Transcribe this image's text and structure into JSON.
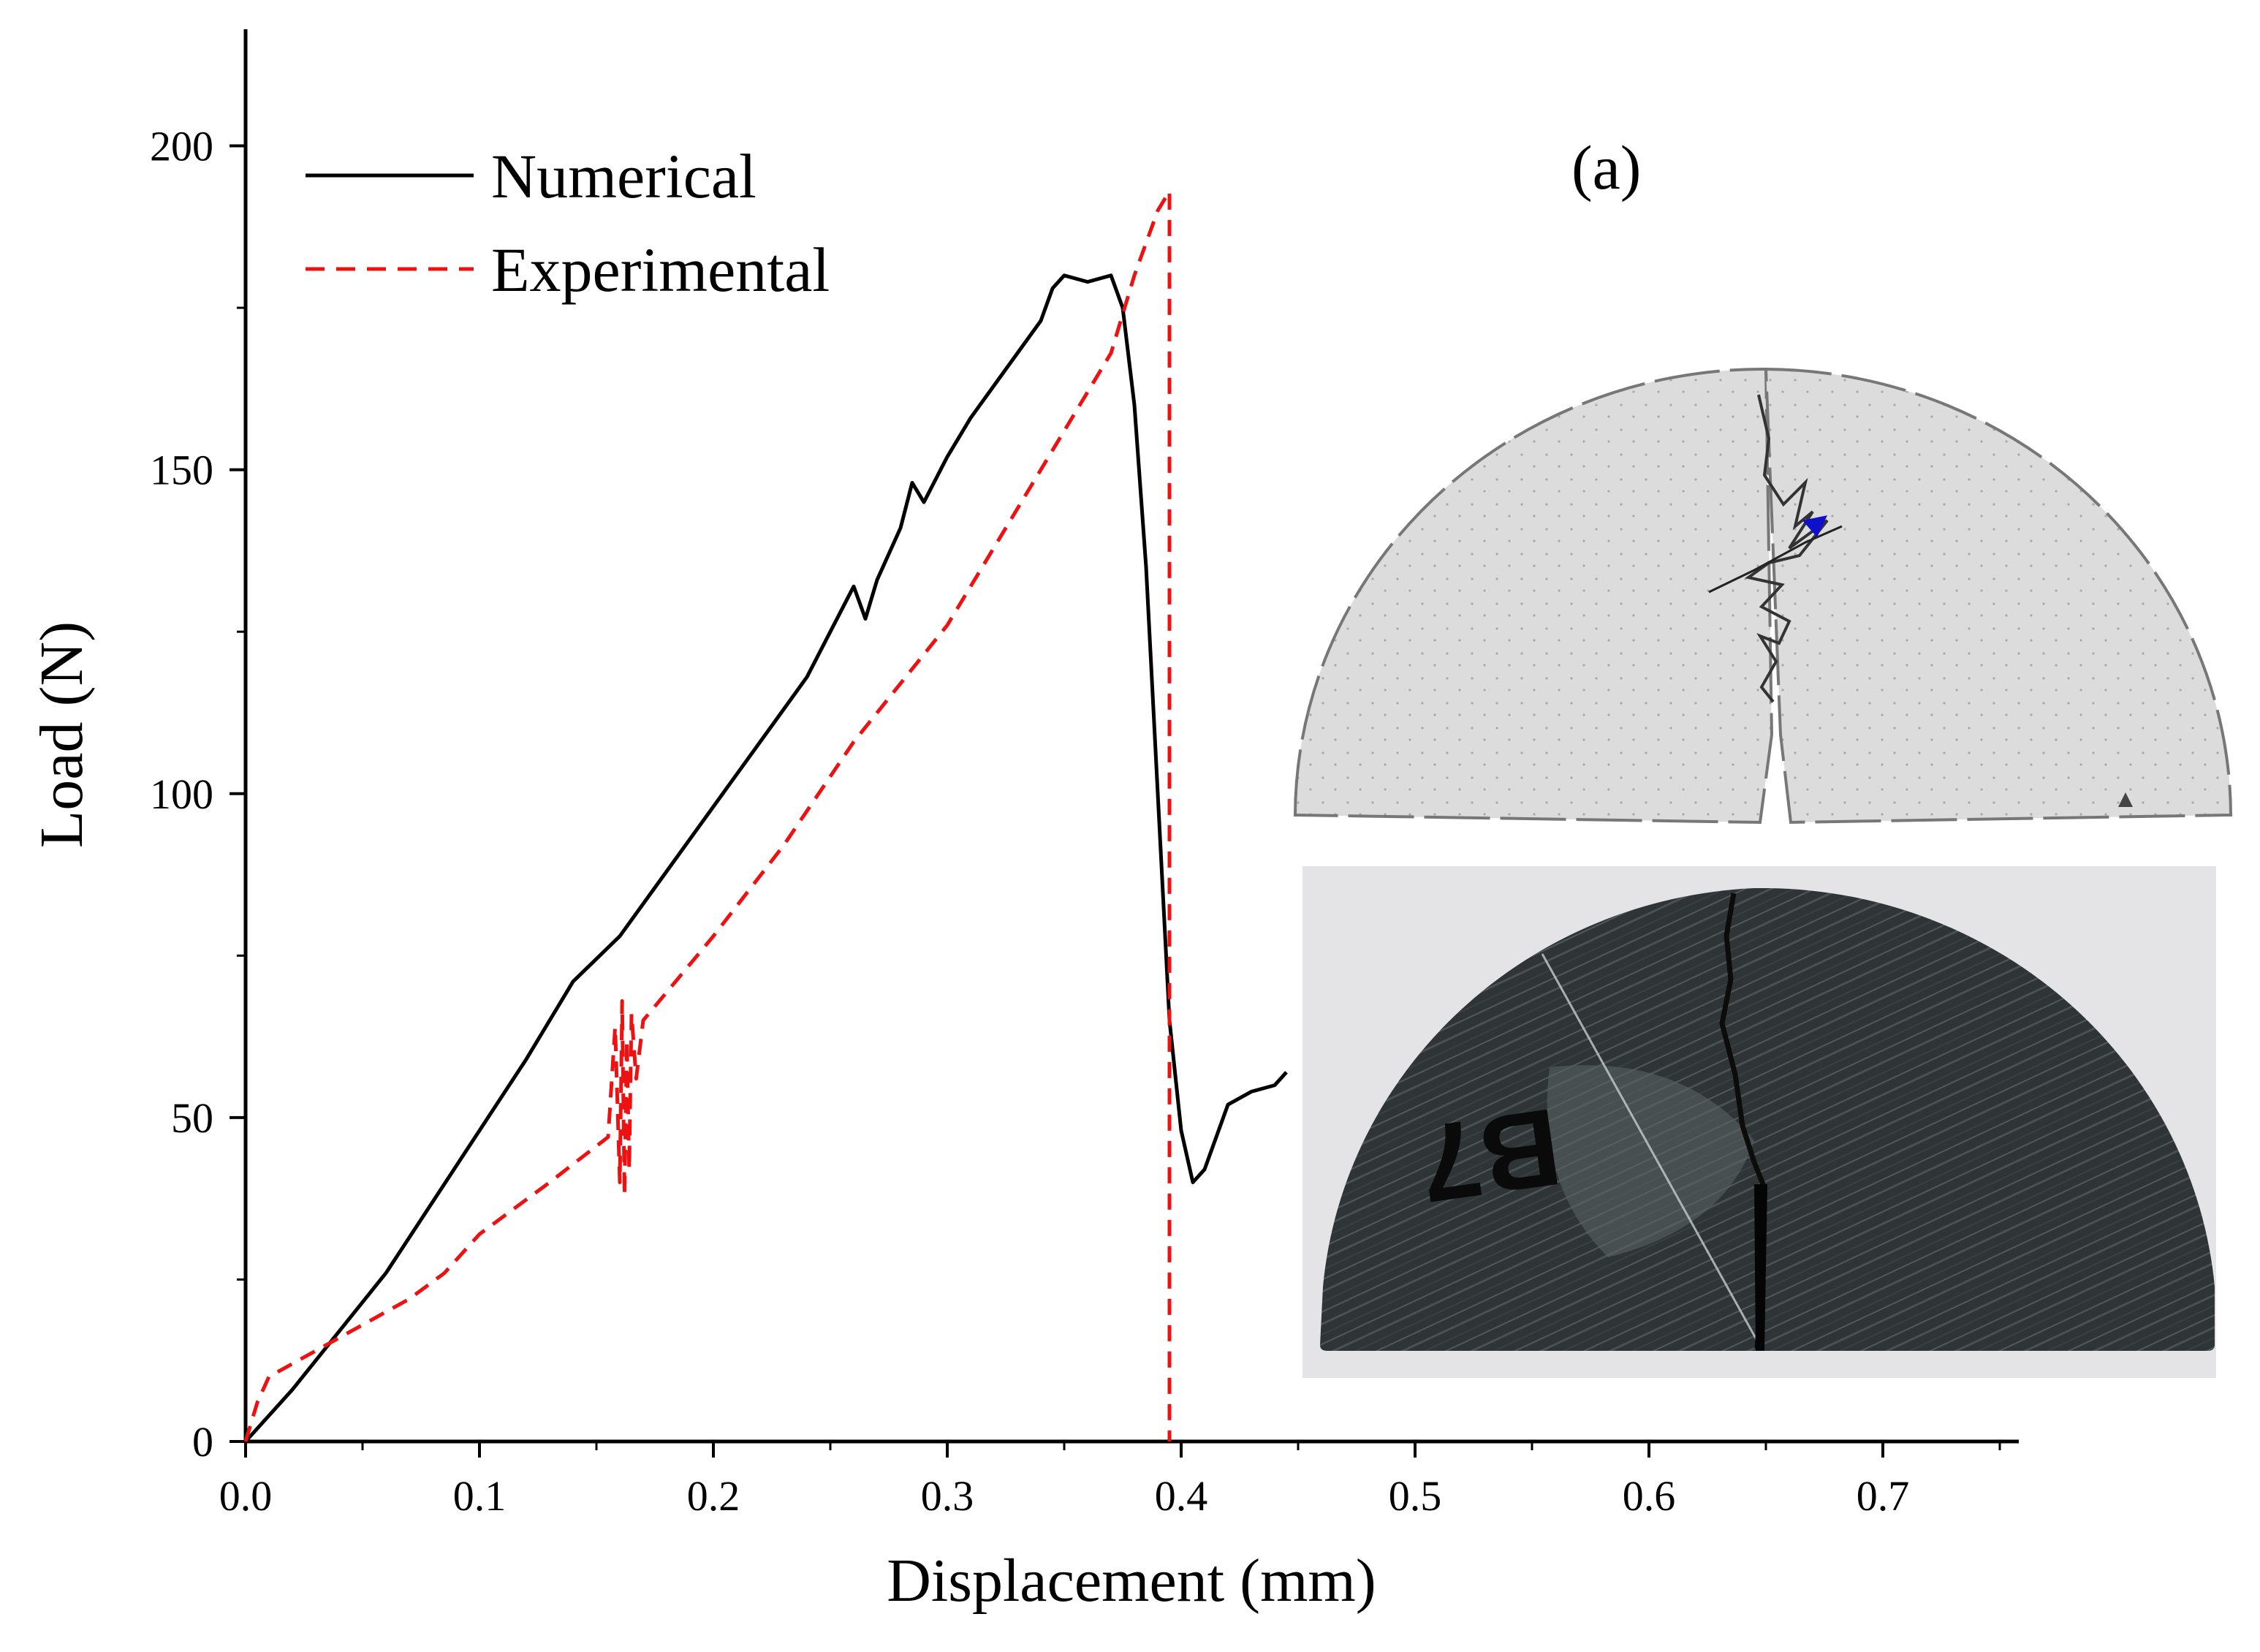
{
  "chart_data": {
    "type": "line",
    "title": "",
    "panel_label": "(a)",
    "xlabel": "Displacement (mm)",
    "ylabel": "Load (N)",
    "xlim": [
      0.0,
      0.75
    ],
    "ylim": [
      0,
      218
    ],
    "x_ticks": [
      "0.0",
      "0.1",
      "0.2",
      "0.3",
      "0.4",
      "0.5",
      "0.6",
      "0.7"
    ],
    "x_tick_values": [
      0.0,
      0.1,
      0.2,
      0.3,
      0.4,
      0.5,
      0.6,
      0.7
    ],
    "y_ticks": [
      "0",
      "50",
      "100",
      "150",
      "200"
    ],
    "y_tick_values": [
      0,
      50,
      100,
      150,
      200
    ],
    "grid": false,
    "legend_position": "top-left",
    "series": [
      {
        "name": "Numerical",
        "color": "#000000",
        "style": "solid",
        "x": [
          0.0,
          0.02,
          0.04,
          0.06,
          0.08,
          0.1,
          0.12,
          0.14,
          0.16,
          0.18,
          0.2,
          0.21,
          0.22,
          0.23,
          0.24,
          0.25,
          0.26,
          0.265,
          0.27,
          0.28,
          0.285,
          0.29,
          0.3,
          0.31,
          0.32,
          0.33,
          0.34,
          0.345,
          0.35,
          0.36,
          0.37,
          0.375,
          0.38,
          0.385,
          0.39,
          0.395,
          0.4,
          0.405,
          0.41,
          0.42,
          0.43,
          0.44,
          0.445
        ],
        "y": [
          0,
          8,
          17,
          26,
          37,
          48,
          59,
          71,
          78,
          88,
          98,
          103,
          108,
          113,
          118,
          125,
          132,
          127,
          133,
          141,
          148,
          145,
          152,
          158,
          163,
          168,
          173,
          178,
          180,
          179,
          180,
          175,
          160,
          135,
          100,
          65,
          48,
          40,
          42,
          52,
          54,
          55,
          57
        ]
      },
      {
        "name": "Experimental",
        "color": "#ee1111",
        "style": "dashed",
        "x": [
          0.0,
          0.005,
          0.01,
          0.03,
          0.05,
          0.07,
          0.085,
          0.1,
          0.13,
          0.155,
          0.158,
          0.16,
          0.161,
          0.162,
          0.163,
          0.164,
          0.165,
          0.167,
          0.17,
          0.2,
          0.23,
          0.26,
          0.28,
          0.3,
          0.32,
          0.34,
          0.36,
          0.37,
          0.38,
          0.39,
          0.395,
          0.395,
          0.395
        ],
        "y": [
          0,
          6,
          10,
          14,
          18,
          22,
          26,
          32,
          40,
          47,
          64,
          40,
          68,
          38,
          62,
          42,
          66,
          56,
          65,
          78,
          92,
          108,
          117,
          126,
          138,
          150,
          162,
          168,
          180,
          190,
          193,
          60,
          0
        ]
      }
    ]
  },
  "inset": {
    "numerical_label": "B7"
  }
}
